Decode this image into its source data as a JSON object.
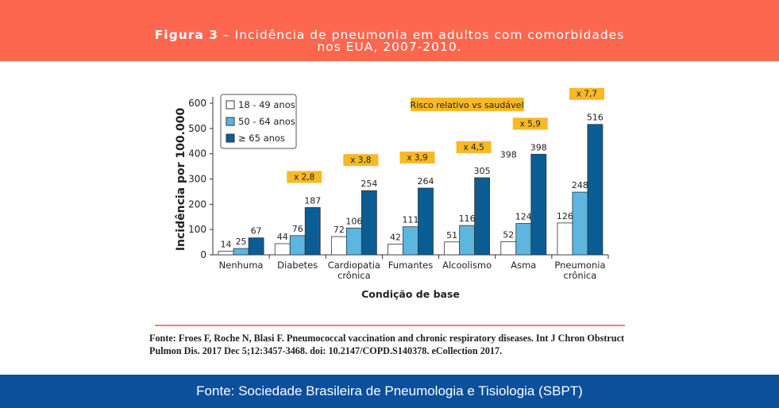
{
  "header": {
    "figure_label": "Figura 3",
    "title_rest": " – Incidência de pneumonia em adultos com comorbidades",
    "title_line2": "nos EUA, 2007-2010."
  },
  "source_text": "Fonte: Froes F, Roche N, Blasi F. Pneumococcal vaccination and chronic respiratory diseases. Int J Chron Obstruct Pulmon Dis. 2017 Dec 5;12:3457-3468. doi: 10.2147/COPD.S140378. eCollection 2017.",
  "footer": {
    "text": "Fonte: Sociedade Brasileira de Pneumologia e Tisiologia (SBPT)"
  },
  "chart_data": {
    "type": "bar",
    "xlabel": "Condição de base",
    "ylabel": "Incidência por 100.000",
    "ylim": [
      0,
      600
    ],
    "yticks": [
      0,
      100,
      200,
      300,
      400,
      500,
      600
    ],
    "categories": [
      [
        "Nenhuma"
      ],
      [
        "Diabetes"
      ],
      [
        "Cardiopatia",
        "crônica"
      ],
      [
        "Fumantes"
      ],
      [
        "Alcoolismo"
      ],
      [
        "Asma"
      ],
      [
        "Pneumonia",
        "crônica"
      ]
    ],
    "series": [
      {
        "name": "18 - 49 anos",
        "color": "#FFFFFF",
        "values": [
          14,
          44,
          72,
          42,
          51,
          52,
          126
        ]
      },
      {
        "name": "50 - 64 anos",
        "color": "#5CB6E0",
        "values": [
          25,
          76,
          106,
          111,
          116,
          124,
          248
        ]
      },
      {
        "name": "≥ 65 anos",
        "color": "#0B5D96",
        "values": [
          67,
          187,
          254,
          264,
          305,
          398,
          516
        ]
      }
    ],
    "risk_legend": "Risco relativo vs saudável",
    "risk_labels": [
      null,
      "x 2,8",
      "x 3,8",
      "x 3,9",
      "x 4,5",
      "x 5,9",
      "x 7,7"
    ],
    "extra_annotation": {
      "category": "Asma",
      "text": "398"
    },
    "badge_color": "#F9B826",
    "legend_placement": "top-left"
  }
}
